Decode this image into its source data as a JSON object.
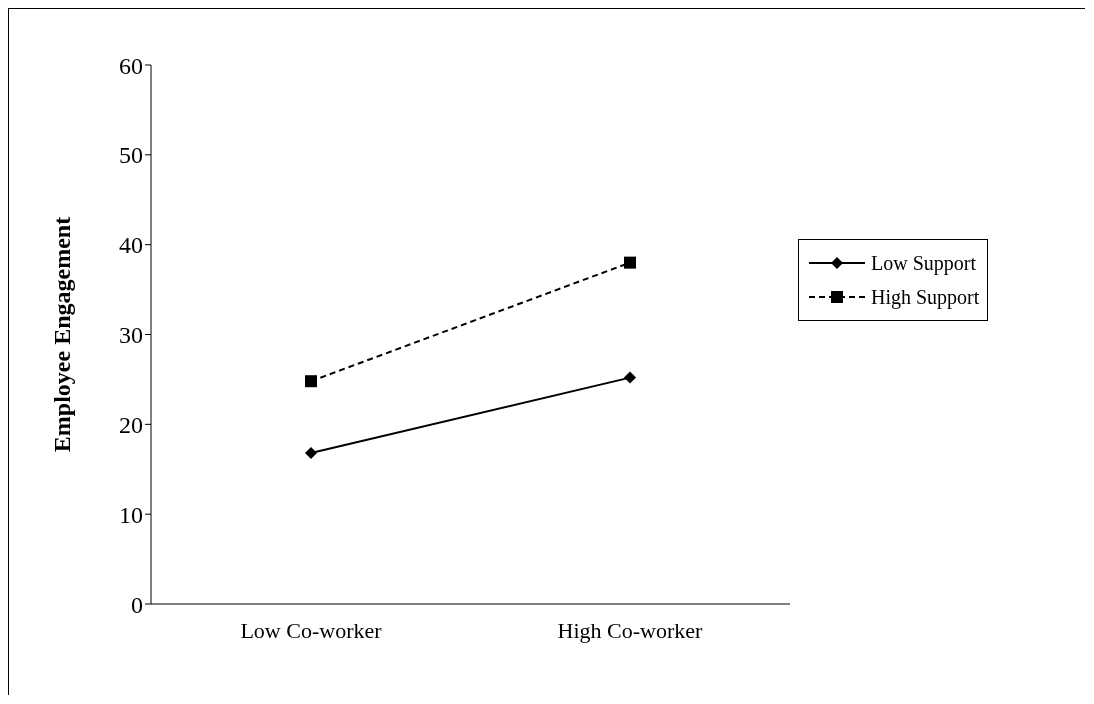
{
  "chart_data": {
    "type": "line",
    "ylabel": "Employee Engagement",
    "categories": [
      "Low Co-worker",
      "High Co-worker"
    ],
    "series": [
      {
        "name": "Low Support",
        "color": "#000000",
        "values": [
          16.8,
          25.2
        ],
        "marker": "diamond",
        "line_style": "solid"
      },
      {
        "name": "High Support",
        "color": "#000000",
        "values": [
          24.8,
          38.0
        ],
        "marker": "square",
        "line_style": "dashed"
      }
    ],
    "ylim": [
      0,
      60
    ],
    "yticks": [
      0,
      10,
      20,
      30,
      40,
      50,
      60
    ],
    "grid": false,
    "legend": "right"
  }
}
